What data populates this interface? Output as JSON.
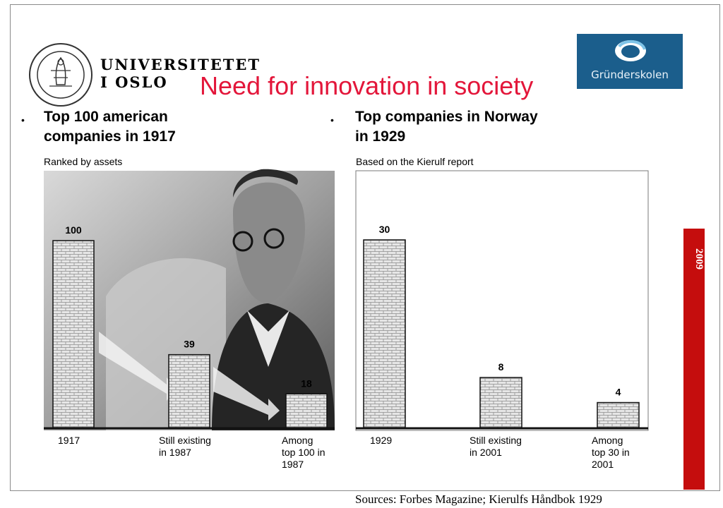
{
  "header": {
    "university_line1": "UNIVERSITETET",
    "university_line2": "I OSLO",
    "title": "Need for innovation in society",
    "logo_text": "Gründerskolen",
    "year_tag": "2009"
  },
  "left": {
    "bullet": "•",
    "heading": [
      "Top 100 american",
      "companies in 1917"
    ],
    "subnote": "Ranked by assets"
  },
  "right": {
    "bullet": "•",
    "heading": [
      "Top companies in Norway",
      "in 1929"
    ],
    "subnote": "Based on the Kierulf report"
  },
  "footer": {
    "sources": "Sources: Forbes Magazine; Kierulfs Håndbok 1929"
  },
  "colors": {
    "title": "#e3163a",
    "logo_bg": "#1b5e8c",
    "year_strip": "#c50d0d",
    "bar_fill": "#e6e6e6"
  },
  "chart_data": [
    {
      "type": "bar",
      "categories": [
        [
          "1917"
        ],
        [
          "Still existing",
          "in 1987"
        ],
        [
          "Among",
          "top 100 in",
          "1987"
        ]
      ],
      "values": [
        100,
        39,
        18
      ],
      "data_labels": [
        "100",
        "39",
        "18"
      ],
      "ylim": [
        0,
        100
      ]
    },
    {
      "type": "bar",
      "categories": [
        [
          "1929"
        ],
        [
          "Still existing",
          "in  2001"
        ],
        [
          "Among",
          "top 30 in",
          "2001"
        ]
      ],
      "values": [
        30,
        8,
        4
      ],
      "data_labels": [
        "30",
        "8",
        "4"
      ],
      "ylim": [
        0,
        30
      ]
    }
  ]
}
